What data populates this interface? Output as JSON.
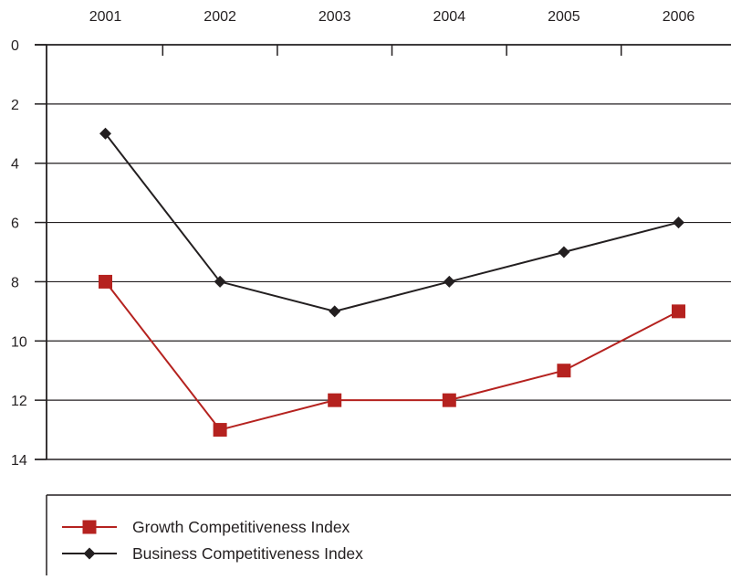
{
  "chart_data": {
    "type": "line",
    "title": "",
    "xlabel": "",
    "ylabel": "",
    "categories": [
      "2001",
      "2002",
      "2003",
      "2004",
      "2005",
      "2006"
    ],
    "y_ticks": [
      "0",
      "2",
      "4",
      "6",
      "8",
      "10",
      "12",
      "14"
    ],
    "ylim": [
      0,
      14
    ],
    "y_inverted": true,
    "x_axis_position": "top",
    "grid": "horizontal",
    "legend_position": "bottom-left",
    "series": [
      {
        "name": "Growth Competitiveness Index",
        "values": [
          8,
          13,
          12,
          12,
          11,
          9
        ],
        "color": "#b5221f",
        "marker": "square"
      },
      {
        "name": "Business Competitiveness Index",
        "values": [
          3,
          8,
          9,
          8,
          7,
          6
        ],
        "color": "#231f20",
        "marker": "diamond"
      }
    ]
  }
}
